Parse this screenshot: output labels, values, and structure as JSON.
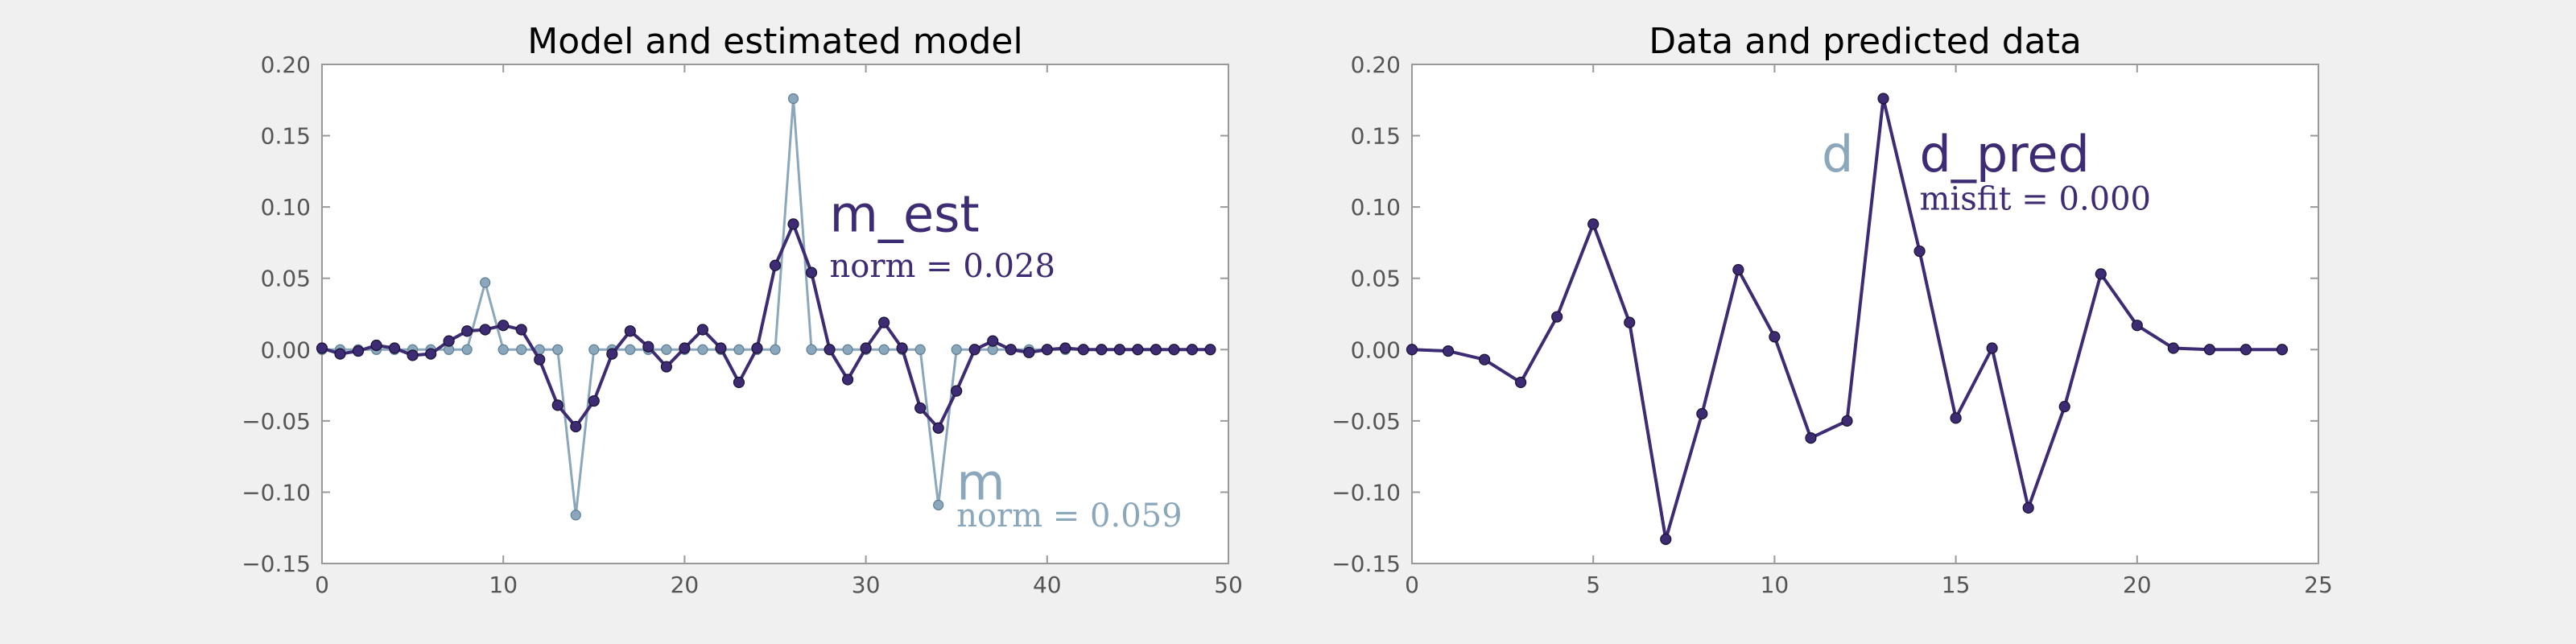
{
  "colors": {
    "dark": "#3d2c73",
    "light": "#8aa7bb",
    "background": "#f0f0f0",
    "axes": "#999999"
  },
  "chart_data": [
    {
      "type": "line",
      "title": "Model and estimated model",
      "xlabel": "",
      "ylabel": "",
      "xlim": [
        0,
        50
      ],
      "ylim": [
        -0.15,
        0.2
      ],
      "xticks": [
        0,
        10,
        20,
        30,
        40,
        50
      ],
      "xtick_labels": [
        "0",
        "10",
        "20",
        "30",
        "40",
        "50"
      ],
      "yticks": [
        -0.15,
        -0.1,
        -0.05,
        0.0,
        0.05,
        0.1,
        0.15,
        0.2
      ],
      "ytick_labels": [
        "−0.15",
        "−0.10",
        "−0.05",
        "0.00",
        "0.05",
        "0.10",
        "0.15",
        "0.20"
      ],
      "grid": false,
      "x": [
        0,
        1,
        2,
        3,
        4,
        5,
        6,
        7,
        8,
        9,
        10,
        11,
        12,
        13,
        14,
        15,
        16,
        17,
        18,
        19,
        20,
        21,
        22,
        23,
        24,
        25,
        26,
        27,
        28,
        29,
        30,
        31,
        32,
        33,
        34,
        35,
        36,
        37,
        38,
        39,
        40,
        41,
        42,
        43,
        44,
        45,
        46,
        47,
        48,
        49
      ],
      "series": [
        {
          "name": "m",
          "color_key": "light",
          "values": [
            0,
            0,
            0,
            0,
            0,
            0,
            0,
            0,
            0,
            0.047,
            0,
            0,
            0,
            0,
            -0.116,
            0,
            0,
            0,
            0,
            0,
            0,
            0,
            0,
            0,
            0,
            0,
            0.176,
            0,
            0,
            0,
            0,
            0,
            0,
            0,
            -0.109,
            0,
            0,
            0,
            0,
            0,
            0,
            0,
            0,
            0,
            0,
            0,
            0,
            0,
            0,
            0
          ]
        },
        {
          "name": "m_est",
          "color_key": "dark",
          "values": [
            0.001,
            -0.003,
            -0.001,
            0.003,
            0.001,
            -0.004,
            -0.003,
            0.006,
            0.013,
            0.014,
            0.017,
            0.014,
            -0.007,
            -0.039,
            -0.054,
            -0.036,
            -0.003,
            0.013,
            0.002,
            -0.012,
            0.001,
            0.014,
            0.001,
            -0.023,
            0.001,
            0.059,
            0.088,
            0.054,
            0.0,
            -0.021,
            0.001,
            0.019,
            0.001,
            -0.041,
            -0.055,
            -0.029,
            0.0,
            0.006,
            0.0,
            -0.002,
            0.0,
            0.001,
            0.0,
            0.0,
            0.0,
            0.0,
            0.0,
            0.0,
            0.0,
            0.0
          ]
        }
      ],
      "annotations": [
        {
          "id": "m_est",
          "text": "m_est",
          "color_key": "dark",
          "x": 28,
          "y": 0.083
        },
        {
          "id": "m_est_norm",
          "text": "norm = 0.028",
          "color_key": "dark",
          "x": 28,
          "y": 0.051
        },
        {
          "id": "m",
          "text": "m",
          "color_key": "light",
          "x": 35,
          "y": -0.105
        },
        {
          "id": "m_norm",
          "text": "norm = 0.059",
          "color_key": "light",
          "x": 35,
          "y": -0.124
        }
      ]
    },
    {
      "type": "line",
      "title": "Data and predicted data",
      "xlabel": "",
      "ylabel": "",
      "xlim": [
        0,
        25
      ],
      "ylim": [
        -0.15,
        0.2
      ],
      "xticks": [
        0,
        5,
        10,
        15,
        20,
        25
      ],
      "xtick_labels": [
        "0",
        "5",
        "10",
        "15",
        "20",
        "25"
      ],
      "yticks": [
        -0.15,
        -0.1,
        -0.05,
        0.0,
        0.05,
        0.1,
        0.15,
        0.2
      ],
      "ytick_labels": [
        "−0.15",
        "−0.10",
        "−0.05",
        "0.00",
        "0.05",
        "0.10",
        "0.15",
        "0.20"
      ],
      "grid": false,
      "x": [
        0,
        1,
        2,
        3,
        4,
        5,
        6,
        7,
        8,
        9,
        10,
        11,
        12,
        13,
        14,
        15,
        16,
        17,
        18,
        19,
        20,
        21,
        22,
        23,
        24
      ],
      "series": [
        {
          "name": "d",
          "color_key": "light",
          "values": [
            0.0,
            -0.001,
            -0.007,
            -0.023,
            0.023,
            0.088,
            0.019,
            -0.133,
            -0.045,
            0.056,
            0.009,
            -0.062,
            -0.05,
            0.176,
            0.069,
            -0.048,
            0.001,
            -0.111,
            -0.04,
            0.053,
            0.017,
            0.001,
            0.0,
            0.0,
            0.0
          ]
        },
        {
          "name": "d_pred",
          "color_key": "dark",
          "values": [
            0.0,
            -0.001,
            -0.007,
            -0.023,
            0.023,
            0.088,
            0.019,
            -0.133,
            -0.045,
            0.056,
            0.009,
            -0.062,
            -0.05,
            0.176,
            0.069,
            -0.048,
            0.001,
            -0.111,
            -0.04,
            0.053,
            0.017,
            0.001,
            0.0,
            0.0,
            0.0
          ]
        }
      ],
      "annotations": [
        {
          "id": "d",
          "text": "d",
          "color_key": "light",
          "x": 11.3,
          "y": 0.125
        },
        {
          "id": "d_pred",
          "text": "d_pred",
          "color_key": "dark",
          "x": 14,
          "y": 0.125
        },
        {
          "id": "misfit",
          "text": "misfit = 0.000",
          "color_key": "dark",
          "x": 14,
          "y": 0.098
        }
      ]
    }
  ]
}
